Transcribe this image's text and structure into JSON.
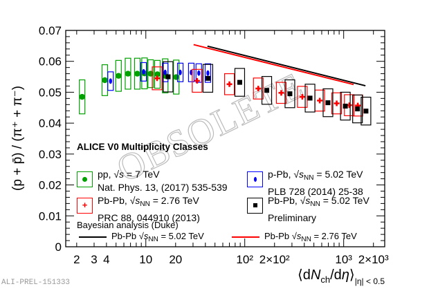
{
  "chart_data": {
    "type": "scatter",
    "title": "ALICE V0 Multiplicity Classes",
    "xlabel": "⟨dNch/dη⟩|η| < 0.5",
    "xlabel_parts": {
      "pre": "⟨d",
      "N": "N",
      "sub": "ch",
      "post": "/d",
      "eta": "η",
      "close": "⟩",
      "range": "|η| < 0.5"
    },
    "ylabel": "(p + p̄) / (π⁺ + π⁻)",
    "xscale": "log",
    "xlim": [
      1.55,
      2600
    ],
    "ylim": [
      0,
      0.07
    ],
    "yticks": [
      "0",
      "0.01",
      "0.02",
      "0.03",
      "0.04",
      "0.05",
      "0.06",
      "0.07"
    ],
    "xticks": [
      {
        "v": 2,
        "label": "2"
      },
      {
        "v": 3,
        "label": "3"
      },
      {
        "v": 4,
        "label": "4"
      },
      {
        "v": 10,
        "label": "10"
      },
      {
        "v": 20,
        "label": "20"
      },
      {
        "v": 100,
        "label": "10²"
      },
      {
        "v": 200,
        "label": "2×10²"
      },
      {
        "v": 1000,
        "label": "10³"
      },
      {
        "v": 2000,
        "label": "2×10³"
      }
    ],
    "series": [
      {
        "name": "pp, √s = 7 TeV",
        "color": "#00a000",
        "marker": "circle",
        "x": [
          2.27,
          3.85,
          5.3,
          6.6,
          8.2,
          9.7,
          11.2,
          13.1,
          15.7,
          20.3
        ],
        "y": [
          0.0485,
          0.0539,
          0.0553,
          0.056,
          0.056,
          0.0561,
          0.056,
          0.0558,
          0.0553,
          0.0549
        ],
        "sys": [
          0.0055,
          0.005,
          0.005,
          0.005,
          0.005,
          0.005,
          0.0045,
          0.0045,
          0.0055,
          0.0055
        ]
      },
      {
        "name": "p-Pb, √sNN = 5.02 TeV",
        "color": "#0000ff",
        "marker": "diamond",
        "x": [
          4.4,
          9.5,
          15.7,
          22.3,
          28.8,
          34.3,
          42.4
        ],
        "y": [
          0.0536,
          0.0566,
          0.0564,
          0.0564,
          0.0564,
          0.0562,
          0.0562
        ],
        "sys": [
          0.003,
          0.003,
          0.003,
          0.003,
          0.003,
          0.003,
          0.003
        ]
      },
      {
        "name": "Pb-Pb, √sNN = 2.76 TeV",
        "color": "#ff0000",
        "marker": "cross",
        "x": [
          13.0,
          33,
          70,
          137,
          234,
          382,
          573,
          850,
          1140,
          1390
        ],
        "y": [
          0.0545,
          0.0537,
          0.0526,
          0.0512,
          0.0498,
          0.0485,
          0.0473,
          0.0464,
          0.0458,
          0.0457
        ],
        "sys": [
          0.0037,
          0.0037,
          0.0034,
          0.0034,
          0.0034,
          0.0034,
          0.0034,
          0.0034,
          0.0034,
          0.0034
        ]
      },
      {
        "name": "Pb-Pb, √sNN = 5.02 TeV (Preliminary)",
        "color": "#000000",
        "marker": "square",
        "x": [
          16.8,
          42.4,
          89,
          167,
          286,
          457,
          694,
          1040,
          1380,
          1680
        ],
        "y": [
          0.055,
          0.0545,
          0.0532,
          0.0506,
          0.0495,
          0.0481,
          0.0466,
          0.0455,
          0.0446,
          0.0439
        ],
        "sys": [
          0.0049,
          0.0045,
          0.0045,
          0.0045,
          0.0045,
          0.0045,
          0.0045,
          0.0045,
          0.0045,
          0.0045
        ]
      }
    ],
    "lines": [
      {
        "name": "Bayesian analysis (Duke) Pb-Pb √sNN = 5.02 TeV",
        "color": "#000000",
        "x": [
          42,
          1660
        ],
        "y": [
          0.0649,
          0.0521
        ]
      },
      {
        "name": "Bayesian analysis (Duke) Pb-Pb √sNN = 2.76 TeV",
        "color": "#ff0000",
        "x": [
          30.4,
          1260
        ],
        "y": [
          0.0654,
          0.0525
        ]
      }
    ],
    "watermark": "OBSOLETE",
    "legend_placement": "bottom-inside"
  },
  "legend": {
    "title": "ALICE V0 Multiplicity Classes",
    "pp": {
      "l1a": "pp, √",
      "l1b": "s",
      "l1c": " = 7 TeV",
      "l2": "Nat. Phys. 13, (2017) 535-539"
    },
    "ppb": {
      "l1a": "p-Pb, √",
      "l1b": "s",
      "sub": "NN",
      "l1c": " = 5.02 TeV",
      "l2": "PLB 728 (2014) 25-38"
    },
    "pbpb276": {
      "l1a": "Pb-Pb, √",
      "l1b": "s",
      "sub": "NN",
      "l1c": " = 2.76 TeV",
      "l2": "PRC 88, 044910 (2013)"
    },
    "pbpb502": {
      "l1a": "Pb-Pb, √",
      "l1b": "s",
      "sub": "NN",
      "l1c": " = 5.02 TeV",
      "l2": "Preliminary"
    },
    "model": "Bayesian analysis (Duke)",
    "line502": {
      "a": "Pb-Pb √",
      "b": "s",
      "sub": "NN",
      "c": " = 5.02 TeV"
    },
    "line276": {
      "a": "Pb-Pb √",
      "b": "s",
      "sub": "NN",
      "c": " = 2.76 TeV"
    }
  },
  "figure_id": "ALI-PREL-151333"
}
